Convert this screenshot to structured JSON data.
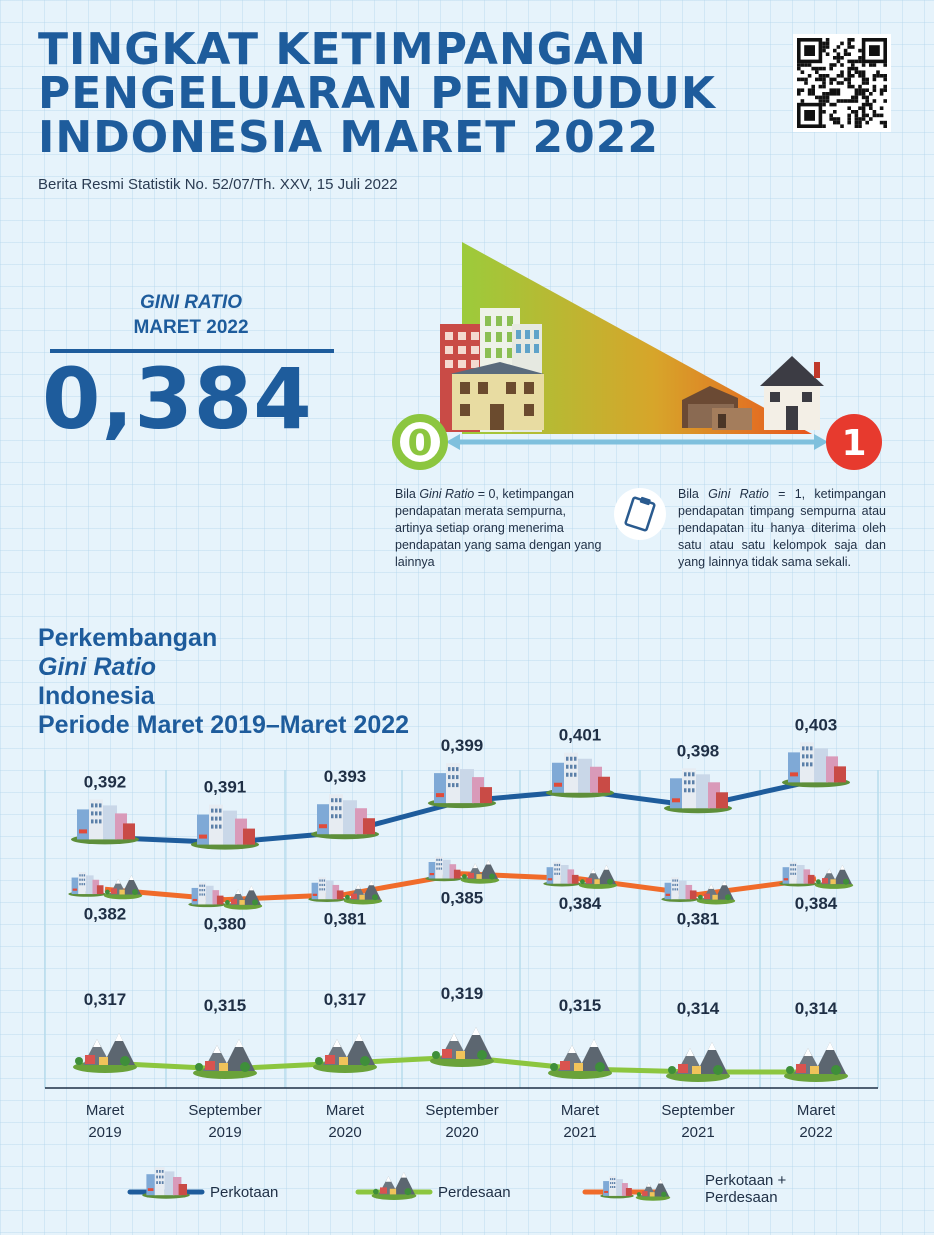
{
  "header": {
    "title_lines": [
      "TINGKAT KETIMPANGAN",
      "PENGELUARAN PENDUDUK",
      "INDONESIA MARET 2022"
    ],
    "subtitle": "Berita Resmi Statistik No. 52/07/Th. XXV, 15 Juli 2022"
  },
  "gini": {
    "label_italic": "GINI RATIO",
    "label_period": "MARET 2022",
    "value": "0,384"
  },
  "scale": {
    "zero_label": "0",
    "one_label": "1",
    "colors": {
      "zero": "#8cc63f",
      "one": "#e73a2e"
    },
    "desc_zero": {
      "pre": "Bila ",
      "italic": "Gini Ratio",
      "post": " = 0, ketimpangan pendapatan merata sempurna, artinya setiap orang menerima pendapatan yang sama dengan yang lainnya"
    },
    "desc_one": {
      "pre": "Bila ",
      "italic": "Gini Ratio",
      "post": " = 1, ketimpangan pendapatan timpang sempurna atau pendapatan itu hanya diterima oleh satu atau satu kelompok saja dan yang lainnya tidak sama sekali."
    }
  },
  "section": {
    "title_pre": "Perkembangan ",
    "title_italic": "Gini Ratio",
    "title_post": " Indonesia",
    "title_line2": "Periode Maret 2019–Maret 2022"
  },
  "chart_data": {
    "type": "line",
    "categories": [
      [
        "Maret",
        "2019"
      ],
      [
        "September",
        "2019"
      ],
      [
        "Maret",
        "2020"
      ],
      [
        "September",
        "2020"
      ],
      [
        "Maret",
        "2021"
      ],
      [
        "September",
        "2021"
      ],
      [
        "Maret",
        "2022"
      ]
    ],
    "series": [
      {
        "name": "Perkotaan",
        "color": "#1e5c9c",
        "values": [
          0.392,
          0.391,
          0.393,
          0.399,
          0.401,
          0.398,
          0.403
        ],
        "labels": [
          "0,392",
          "0,391",
          "0,393",
          "0,399",
          "0,401",
          "0,398",
          "0,403"
        ]
      },
      {
        "name": "Perkotaan + Perdesaan",
        "color": "#f06b2a",
        "values": [
          0.382,
          0.38,
          0.381,
          0.385,
          0.384,
          0.381,
          0.384
        ],
        "labels": [
          "0,382",
          "0,380",
          "0,381",
          "0,385",
          "0,384",
          "0,381",
          "0,384"
        ]
      },
      {
        "name": "Perdesaan",
        "color": "#8cc63f",
        "values": [
          0.317,
          0.315,
          0.317,
          0.319,
          0.315,
          0.314,
          0.314
        ],
        "labels": [
          "0,317",
          "0,315",
          "0,317",
          "0,319",
          "0,315",
          "0,314",
          "0,314"
        ]
      }
    ],
    "grid": true
  },
  "legend": [
    {
      "label": "Perkotaan",
      "color": "#1e5c9c",
      "icon": "city-icon"
    },
    {
      "label": "Perdesaan",
      "color": "#8cc63f",
      "icon": "village-icon"
    },
    {
      "label": "Perkotaan + Perdesaan",
      "color": "#f06b2a",
      "icon": "city-village-icon"
    }
  ]
}
